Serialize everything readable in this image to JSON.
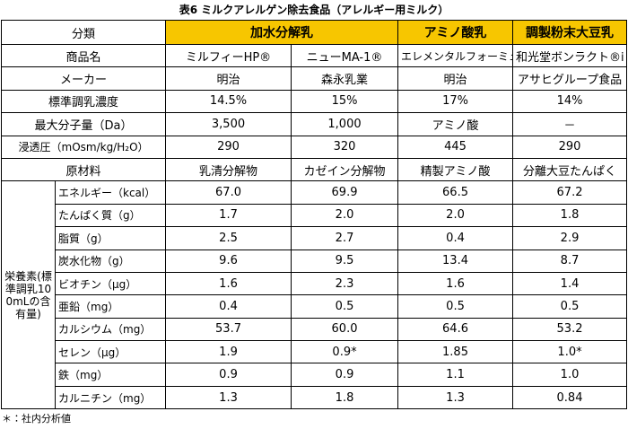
{
  "header": {
    "title": "表6 ミルクアレルゲン除去食品（アレルギー用ミルク）"
  },
  "table": {
    "corner": "分類",
    "groups": [
      "加水分解乳",
      "アミノ酸乳",
      "調製粉末大豆乳"
    ],
    "rows": [
      [
        "商品名",
        "ミルフィーHP®",
        "ニューMA-1®",
        "エレメンタルフォーミュラ®",
        "和光堂ボンラクト®i"
      ],
      [
        "メーカー",
        "明治",
        "森永乳業",
        "明治",
        "アサヒグループ食品"
      ],
      [
        "標準調乳濃度",
        "14.5%",
        "15%",
        "17%",
        "14%"
      ],
      [
        "最大分子量（Da）",
        "3,500",
        "1,000",
        "アミノ酸",
        "－"
      ],
      [
        "浸透圧（mOsm/kg/H₂O）",
        "290",
        "320",
        "445",
        "290"
      ],
      [
        "原材料",
        "乳清分解物",
        "カゼイン分解物",
        "精製アミノ酸",
        "分離大豆たんぱく"
      ]
    ],
    "nutrients": {
      "label": "栄養素(標準調乳100mLの含有量)",
      "rows": [
        [
          "エネルギー（kcal）",
          "67.0",
          "69.9",
          "66.5",
          "67.2"
        ],
        [
          "たんぱく質（g）",
          "1.7",
          "2.0",
          "2.0",
          "1.8"
        ],
        [
          "脂質（g）",
          "2.5",
          "2.7",
          "0.4",
          "2.9"
        ],
        [
          "炭水化物（g）",
          "9.6",
          "9.5",
          "13.4",
          "8.7"
        ],
        [
          "ビオチン（μg）",
          "1.6",
          "2.3",
          "1.6",
          "1.4"
        ],
        [
          "亜鉛（mg）",
          "0.4",
          "0.5",
          "0.5",
          "0.5"
        ],
        [
          "カルシウム（mg）",
          "53.7",
          "60.0",
          "64.6",
          "53.2"
        ],
        [
          "セレン（μg）",
          "1.9",
          "0.9*",
          "1.85",
          "1.0*"
        ],
        [
          "鉄（mg）",
          "0.9",
          "0.9",
          "1.1",
          "1.0"
        ],
        [
          "カルニチン（mg）",
          "1.3",
          "1.8",
          "1.3",
          "0.84"
        ]
      ]
    }
  },
  "footnote": "＊：社内分析値"
}
